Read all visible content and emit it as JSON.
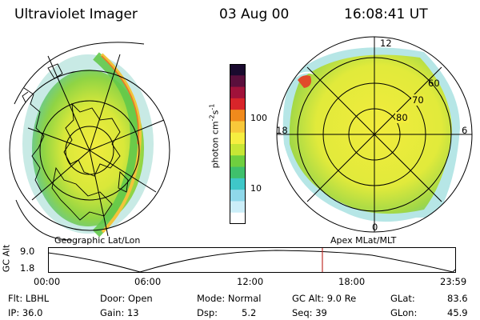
{
  "header": {
    "instrument": "Ultraviolet Imager",
    "date": "03 Aug 00",
    "time": "16:08:41 UT"
  },
  "panels": {
    "left_label": "Geographic Lat/Lon",
    "right_label": "Apex MLat/MLT"
  },
  "colorbar": {
    "ticks": [
      "100",
      "10"
    ],
    "unit_main": "photon cm",
    "unit_sup1": "-2",
    "unit_mid": "s",
    "unit_sup2": "-1",
    "colors": [
      "#1a0a2e",
      "#5a0f3c",
      "#a0123a",
      "#d8252a",
      "#f08a1c",
      "#f8c83a",
      "#f6ee40",
      "#c7e635",
      "#6fcf3f",
      "#3fc06c",
      "#3fc7c8",
      "#8fd8ea",
      "#cceef8",
      "#ffffff"
    ]
  },
  "polar": {
    "lat_labels": [
      "80",
      "70",
      "60"
    ],
    "mlt_labels": {
      "top": "12",
      "left": "18",
      "right": "6",
      "bottom": "0"
    }
  },
  "gc_plot": {
    "ylabel": "GC Alt",
    "yticks": [
      "9.0",
      "1.8"
    ],
    "xticks": [
      "00:00",
      "06:00",
      "12:00",
      "18:00",
      "23:59"
    ],
    "marker_time_hours": 16.14,
    "marker_color": "#c0302a"
  },
  "info": {
    "filter": "Flt: LBHL",
    "ip": "IP: 36.0",
    "door": "Door: Open",
    "gain": "Gain: 13",
    "mode": "Mode: Normal",
    "dsp_label": "Dsp:",
    "dsp_value": "5.2",
    "gc_alt": "GC Alt: 9.0 Re",
    "seq": "Seq: 39",
    "glat_label": "GLat:",
    "glat_value": "83.6",
    "glon_label": "GLon:",
    "glon_value": "45.9"
  }
}
